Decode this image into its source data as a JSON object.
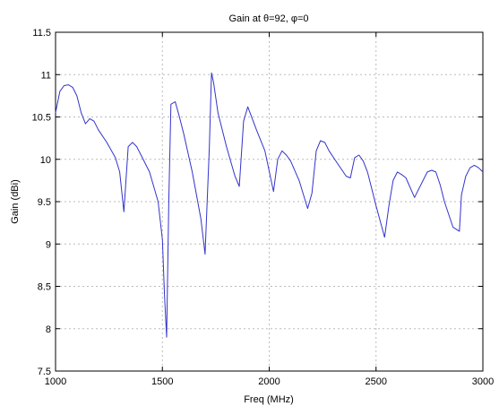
{
  "chart_data": {
    "type": "line",
    "title": "Gain at θ=92, φ=0",
    "xlabel": "Freq (MHz)",
    "ylabel": "Gain (dBi)",
    "xlim": [
      1000,
      3000
    ],
    "ylim": [
      7.5,
      11.5
    ],
    "x_ticks": [
      1000,
      1500,
      2000,
      2500,
      3000
    ],
    "y_ticks": [
      7.5,
      8,
      8.5,
      9,
      9.5,
      10,
      10.5,
      11,
      11.5
    ],
    "x_tick_labels": [
      "1000",
      "1500",
      "2000",
      "2500",
      "3000"
    ],
    "y_tick_labels": [
      "7.5",
      "8",
      "8.5",
      "9",
      "9.5",
      "10",
      "10.5",
      "11",
      "11.5"
    ],
    "grid": true,
    "line_color": "#3333cc",
    "series": [
      {
        "x": [
          1000,
          1020,
          1040,
          1060,
          1080,
          1100,
          1120,
          1140,
          1160,
          1180,
          1200,
          1240,
          1280,
          1300,
          1320,
          1340,
          1360,
          1380,
          1400,
          1440,
          1480,
          1500,
          1510,
          1520,
          1530,
          1540,
          1560,
          1580,
          1600,
          1640,
          1680,
          1700,
          1720,
          1730,
          1740,
          1760,
          1800,
          1840,
          1860,
          1880,
          1900,
          1940,
          1980,
          2020,
          2040,
          2060,
          2080,
          2100,
          2140,
          2180,
          2200,
          2220,
          2240,
          2260,
          2280,
          2320,
          2360,
          2380,
          2400,
          2420,
          2440,
          2460,
          2480,
          2500,
          2540,
          2560,
          2580,
          2600,
          2620,
          2640,
          2680,
          2720,
          2740,
          2760,
          2780,
          2800,
          2820,
          2860,
          2890,
          2900,
          2920,
          2940,
          2960,
          2980,
          3000
        ],
        "y": [
          10.55,
          10.8,
          10.87,
          10.88,
          10.85,
          10.75,
          10.55,
          10.42,
          10.48,
          10.45,
          10.35,
          10.2,
          10.02,
          9.85,
          9.38,
          10.15,
          10.2,
          10.15,
          10.05,
          9.85,
          9.5,
          9.05,
          8.4,
          7.9,
          9.5,
          10.65,
          10.68,
          10.5,
          10.3,
          9.85,
          9.3,
          8.88,
          10.15,
          11.02,
          10.9,
          10.55,
          10.15,
          9.8,
          9.68,
          10.45,
          10.62,
          10.35,
          10.1,
          9.62,
          10.0,
          10.1,
          10.05,
          9.98,
          9.75,
          9.42,
          9.6,
          10.1,
          10.22,
          10.2,
          10.1,
          9.95,
          9.8,
          9.78,
          10.02,
          10.05,
          9.98,
          9.85,
          9.65,
          9.45,
          9.08,
          9.45,
          9.75,
          9.85,
          9.82,
          9.78,
          9.55,
          9.75,
          9.85,
          9.87,
          9.85,
          9.7,
          9.5,
          9.2,
          9.15,
          9.58,
          9.8,
          9.9,
          9.93,
          9.9,
          9.85
        ]
      }
    ]
  }
}
